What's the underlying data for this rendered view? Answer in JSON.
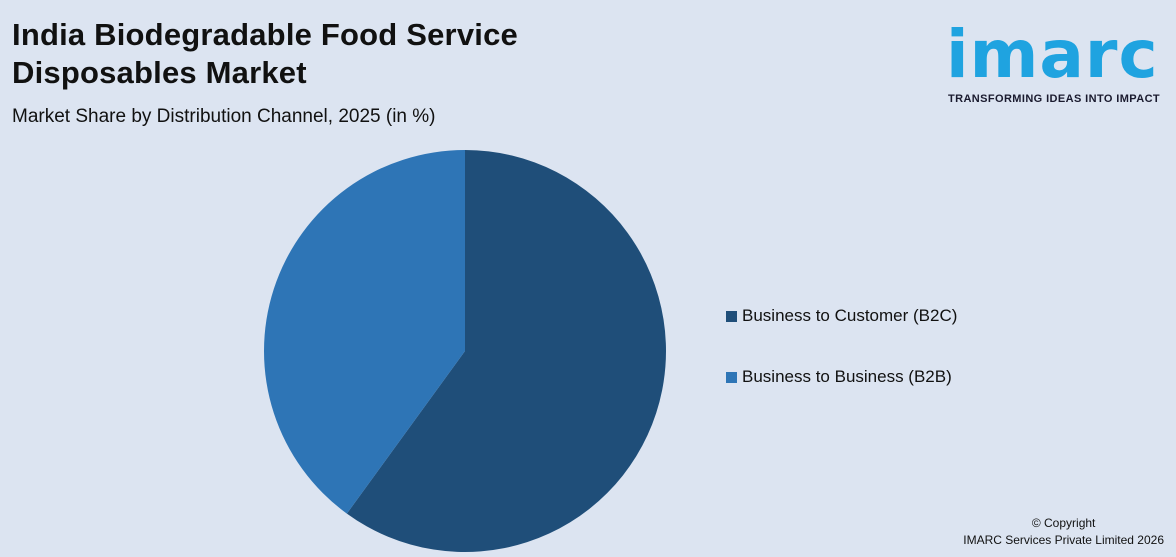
{
  "header": {
    "title_line1": "India Biodegradable Food Service",
    "title_line2": "Disposables Market",
    "subtitle": "Market Share by Distribution Channel, 2025 (in %)"
  },
  "logo": {
    "wordmark": "imarc",
    "tagline": "TRANSFORMING IDEAS INTO IMPACT",
    "color": "#1fa3e0"
  },
  "footer": {
    "line1": "© Copyright",
    "line2": "IMARC Services Private Limited 2026"
  },
  "chart_data": {
    "type": "pie",
    "title": "India Biodegradable Food Service Disposables Market",
    "subtitle": "Market Share by Distribution Channel, 2025 (in %)",
    "legend_position": "right",
    "slices": [
      {
        "name": "Business to Customer (B2C)",
        "value": 60,
        "color": "#1f4e79"
      },
      {
        "name": "Business to Business (B2B)",
        "value": 40,
        "color": "#2e75b6"
      }
    ]
  }
}
